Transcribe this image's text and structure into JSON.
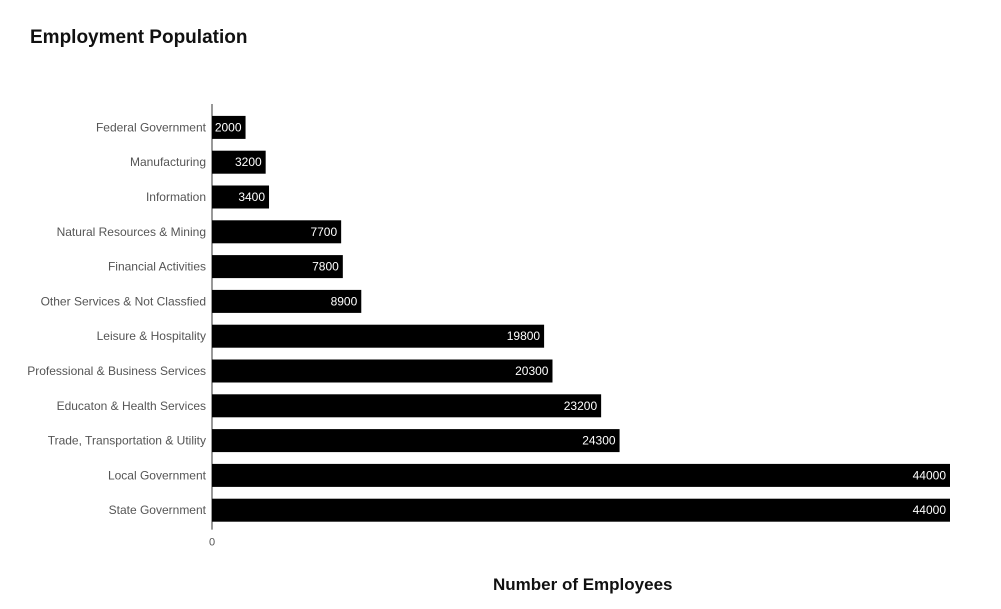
{
  "chart_data": {
    "type": "bar",
    "orientation": "horizontal",
    "title": "Employment Population",
    "xlabel": "Number of Employees",
    "ylabel": "",
    "categories": [
      "Federal Government",
      "Manufacturing",
      "Information",
      "Natural Resources & Mining",
      "Financial Activities",
      "Other Services & Not Classfied",
      "Leisure & Hospitality",
      "Professional & Business Services",
      "Educaton & Health Services",
      "Trade, Transportation & Utility",
      "Local Government",
      "State Government"
    ],
    "values": [
      2000,
      3200,
      3400,
      7700,
      7800,
      8900,
      19800,
      20300,
      23200,
      24300,
      44000,
      44000
    ],
    "x_ticks": [
      "0"
    ],
    "xlim": [
      0,
      44000
    ],
    "bar_color": "#000000",
    "data_label_color": "#ffffff",
    "grid": false,
    "legend": "none"
  }
}
